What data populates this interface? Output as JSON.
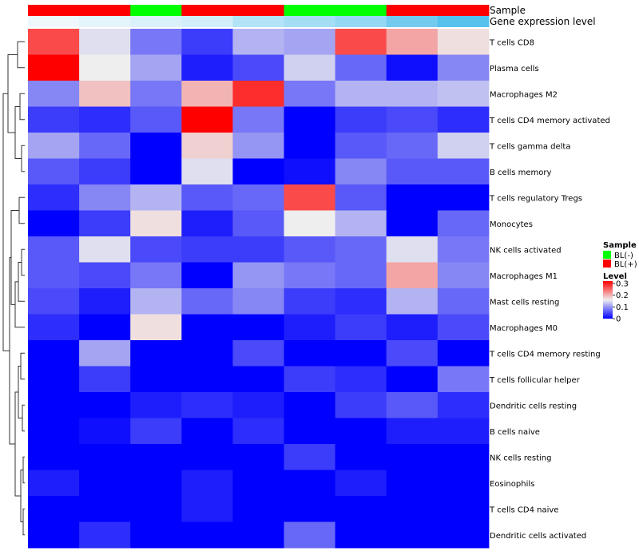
{
  "chart_data": {
    "type": "heatmap",
    "annotation_tracks": [
      {
        "label": "Sample",
        "colors": [
          "#ff0000",
          "#ff0000",
          "#00ff00",
          "#ff0000",
          "#ff0000",
          "#00ff00",
          "#00ff00",
          "#ff0000",
          "#ff0000"
        ]
      },
      {
        "label": "Gene expression level",
        "colors": [
          "#eef8fc",
          "#e4f4fb",
          "#dbf1fa",
          "#d2eefa",
          "#b3e3f6",
          "#a5ddf5",
          "#96d7f3",
          "#72cbef",
          "#55c1ed"
        ]
      }
    ],
    "rows": [
      "T cells CD8",
      "Plasma cells",
      "Macrophages M2",
      "T cells CD4 memory activated",
      "T cells gamma delta",
      "B cells memory",
      "T cells regulatory  Tregs",
      "Monocytes",
      "NK cells activated",
      "Macrophages M1",
      "Mast cells resting",
      "Macrophages M0",
      "T cells CD4 memory resting",
      "T cells follicular helper",
      "Dendritic cells resting",
      "B cells naive",
      "NK cells resting",
      "Eosinophils",
      "T cells CD4 naive",
      "Dendritic cells activated"
    ],
    "values": [
      [
        0.27,
        0.15,
        0.08,
        0.04,
        0.12,
        0.11,
        0.27,
        0.21,
        0.17
      ],
      [
        0.32,
        0.16,
        0.11,
        0.02,
        0.05,
        0.14,
        0.07,
        0.01,
        0.09
      ],
      [
        0.09,
        0.19,
        0.08,
        0.2,
        0.29,
        0.08,
        0.12,
        0.12,
        0.13
      ],
      [
        0.04,
        0.03,
        0.06,
        0.32,
        0.08,
        0.0,
        0.04,
        0.05,
        0.03
      ],
      [
        0.11,
        0.07,
        0.0,
        0.18,
        0.1,
        0.0,
        0.06,
        0.07,
        0.14
      ],
      [
        0.06,
        0.04,
        0.0,
        0.15,
        0.0,
        0.01,
        0.09,
        0.06,
        0.06
      ],
      [
        0.03,
        0.09,
        0.12,
        0.06,
        0.07,
        0.27,
        0.06,
        0.0,
        0.0
      ],
      [
        0.0,
        0.04,
        0.17,
        0.02,
        0.06,
        0.16,
        0.12,
        0.0,
        0.07
      ],
      [
        0.06,
        0.15,
        0.05,
        0.04,
        0.04,
        0.06,
        0.07,
        0.15,
        0.08
      ],
      [
        0.06,
        0.05,
        0.08,
        0.0,
        0.1,
        0.08,
        0.07,
        0.21,
        0.09
      ],
      [
        0.05,
        0.02,
        0.12,
        0.07,
        0.09,
        0.04,
        0.03,
        0.12,
        0.07
      ],
      [
        0.03,
        0.0,
        0.17,
        0.0,
        0.0,
        0.02,
        0.04,
        0.02,
        0.05
      ],
      [
        0.0,
        0.11,
        0.0,
        0.0,
        0.05,
        0.0,
        0.0,
        0.05,
        0.0
      ],
      [
        0.0,
        0.04,
        0.0,
        0.0,
        0.0,
        0.04,
        0.03,
        0.0,
        0.08
      ],
      [
        0.0,
        0.0,
        0.02,
        0.03,
        0.02,
        0.0,
        0.04,
        0.06,
        0.03
      ],
      [
        0.0,
        0.01,
        0.04,
        0.0,
        0.03,
        0.0,
        0.0,
        0.02,
        0.02
      ],
      [
        0.0,
        0.0,
        0.0,
        0.0,
        0.0,
        0.04,
        0.0,
        0.0,
        0.0
      ],
      [
        0.02,
        0.0,
        0.0,
        0.02,
        0.0,
        0.0,
        0.02,
        0.0,
        0.0
      ],
      [
        0.0,
        0.0,
        0.0,
        0.02,
        0.0,
        0.0,
        0.0,
        0.0,
        0.0
      ],
      [
        0.0,
        0.03,
        0.0,
        0.0,
        0.0,
        0.07,
        0.0,
        0.0,
        0.0
      ]
    ],
    "color_scale": {
      "stops": [
        {
          "value": 0.0,
          "color": "#0000ff"
        },
        {
          "value": 0.16,
          "color": "#eeeeee"
        },
        {
          "value": 0.32,
          "color": "#ff0000"
        }
      ]
    },
    "legend": {
      "sample_title": "Sample",
      "sample_items": [
        {
          "label": "BL(-)",
          "color": "#00ff00"
        },
        {
          "label": "BL(+)",
          "color": "#ff0000"
        }
      ],
      "level_title": "Level",
      "level_ticks": [
        {
          "label": "0.3",
          "value": 0.3
        },
        {
          "label": "0.2",
          "value": 0.2
        },
        {
          "label": "0.1",
          "value": 0.1
        },
        {
          "label": "0",
          "value": 0.0
        }
      ],
      "placement": "right"
    },
    "row_dendrogram": true
  }
}
